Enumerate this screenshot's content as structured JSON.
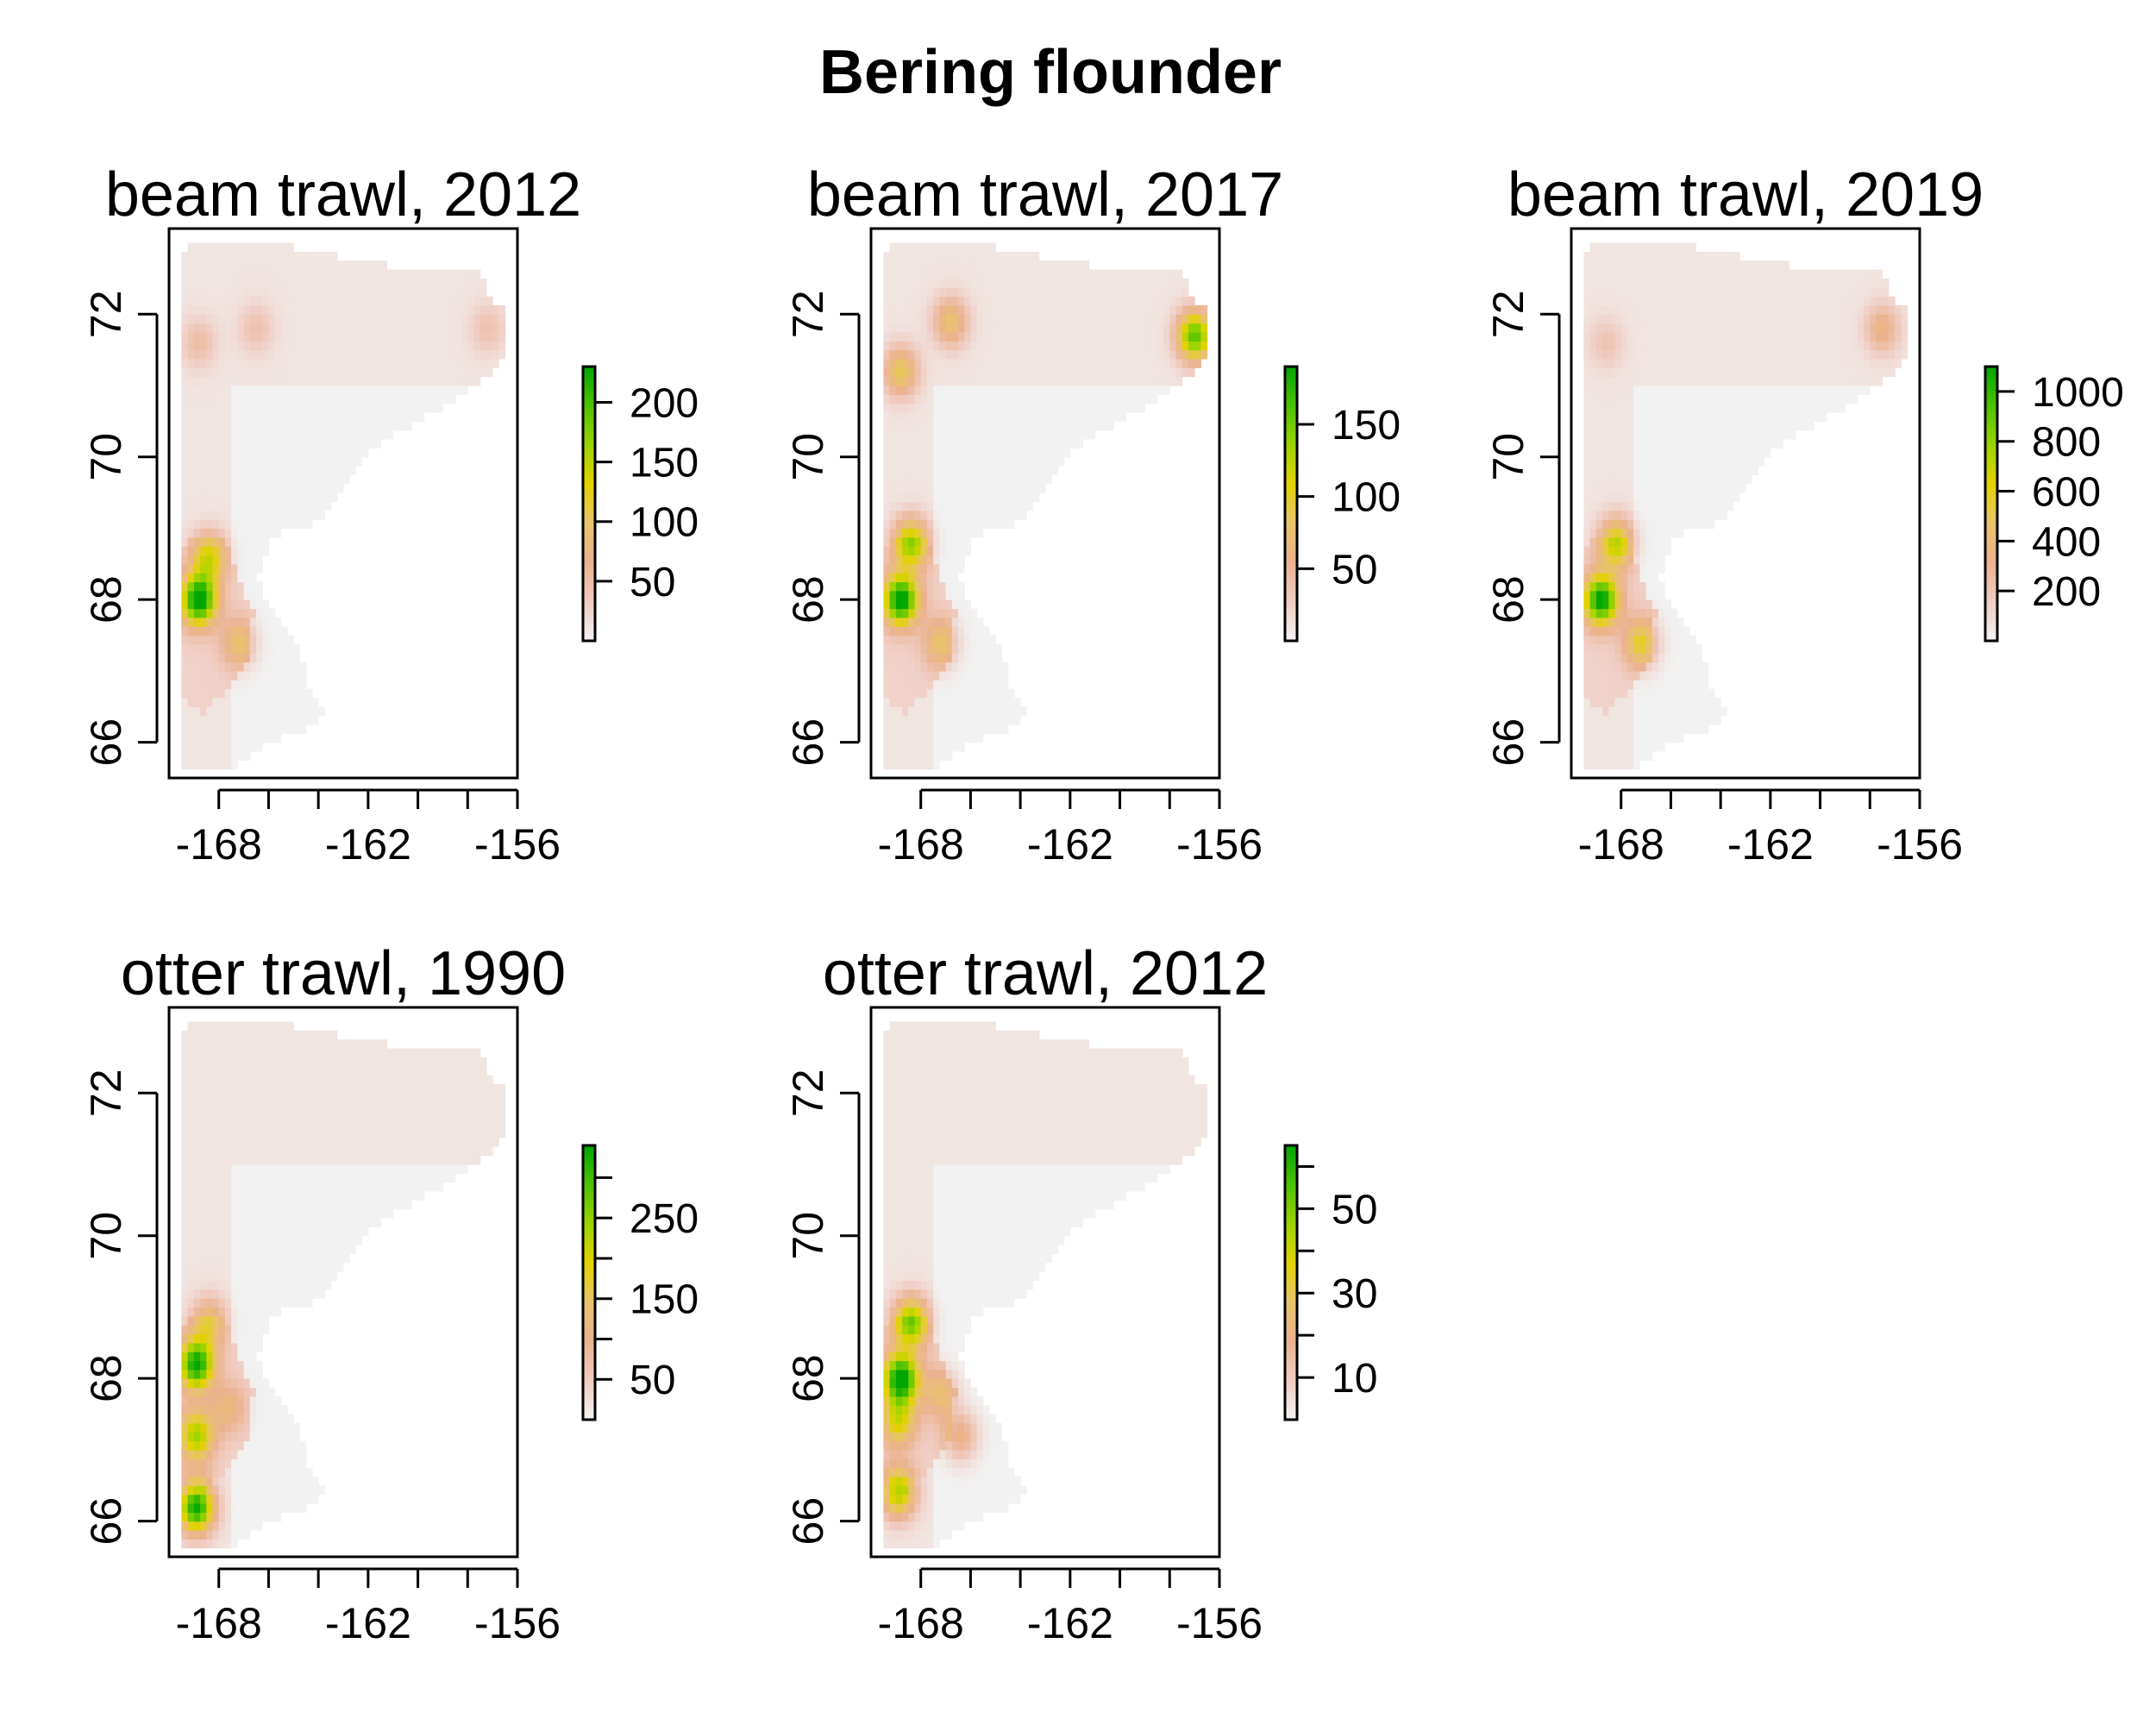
{
  "figure": {
    "title": "Bering flounder"
  },
  "palette": {
    "colorbar": [
      "#f2f2f2",
      "#f0ccc2",
      "#ebb28f",
      "#e9c36c",
      "#e3d300",
      "#9cd400",
      "#4dc200",
      "#00a600"
    ],
    "land_fill": "#ffffff",
    "frame": "#000000"
  },
  "chart_data": [
    {
      "type": "heatmap",
      "title": "beam trawl, 2012",
      "xlim": [
        -170,
        -156
      ],
      "ylim": [
        65.5,
        73.2
      ],
      "x_ticks": [
        -168,
        -166,
        -164,
        -162,
        -160,
        -158,
        -156
      ],
      "x_tick_labels": [
        "-168",
        "",
        "",
        "-162",
        "",
        "",
        "-156"
      ],
      "y_ticks": [
        66,
        68,
        70,
        72
      ],
      "y_tick_labels": [
        "66",
        "68",
        "70",
        "72"
      ],
      "colorbar_range": [
        0,
        230
      ],
      "colorbar_ticks": [
        50,
        100,
        150,
        200
      ],
      "colorbar_labels": [
        "50",
        "100",
        "150",
        "200"
      ],
      "hotspots": [
        {
          "lon": -168.8,
          "lat": 68.0,
          "value": 220
        },
        {
          "lon": -168.4,
          "lat": 68.6,
          "value": 110
        },
        {
          "lon": -167.2,
          "lat": 67.4,
          "value": 70
        },
        {
          "lon": -168.8,
          "lat": 71.6,
          "value": 40
        },
        {
          "lon": -166.5,
          "lat": 71.8,
          "value": 35
        },
        {
          "lon": -157.2,
          "lat": 71.8,
          "value": 35
        }
      ]
    },
    {
      "type": "heatmap",
      "title": "beam trawl, 2017",
      "xlim": [
        -170,
        -156
      ],
      "ylim": [
        65.5,
        73.2
      ],
      "x_ticks": [
        -168,
        -166,
        -164,
        -162,
        -160,
        -158,
        -156
      ],
      "x_tick_labels": [
        "-168",
        "",
        "",
        "-162",
        "",
        "",
        "-156"
      ],
      "y_ticks": [
        66,
        68,
        70,
        72
      ],
      "y_tick_labels": [
        "66",
        "68",
        "70",
        "72"
      ],
      "colorbar_range": [
        0,
        190
      ],
      "colorbar_ticks": [
        50,
        100,
        150
      ],
      "colorbar_labels": [
        "50",
        "100",
        "150"
      ],
      "hotspots": [
        {
          "lon": -168.8,
          "lat": 68.0,
          "value": 180
        },
        {
          "lon": -168.4,
          "lat": 68.8,
          "value": 120
        },
        {
          "lon": -168.8,
          "lat": 71.2,
          "value": 80
        },
        {
          "lon": -166.8,
          "lat": 71.9,
          "value": 70
        },
        {
          "lon": -157.0,
          "lat": 71.7,
          "value": 150
        },
        {
          "lon": -167.2,
          "lat": 67.4,
          "value": 60
        }
      ]
    },
    {
      "type": "heatmap",
      "title": "beam trawl, 2019",
      "xlim": [
        -170,
        -156
      ],
      "ylim": [
        65.5,
        73.2
      ],
      "x_ticks": [
        -168,
        -166,
        -164,
        -162,
        -160,
        -158,
        -156
      ],
      "x_tick_labels": [
        "-168",
        "",
        "",
        "-162",
        "",
        "",
        "-156"
      ],
      "y_ticks": [
        66,
        68,
        70,
        72
      ],
      "y_tick_labels": [
        "66",
        "68",
        "70",
        "72"
      ],
      "colorbar_range": [
        0,
        1100
      ],
      "colorbar_ticks": [
        200,
        400,
        600,
        800,
        1000
      ],
      "colorbar_labels": [
        "200",
        "400",
        "600",
        "800",
        "1000"
      ],
      "hotspots": [
        {
          "lon": -168.8,
          "lat": 68.0,
          "value": 1000
        },
        {
          "lon": -168.2,
          "lat": 68.8,
          "value": 600
        },
        {
          "lon": -167.2,
          "lat": 67.4,
          "value": 450
        },
        {
          "lon": -157.5,
          "lat": 71.8,
          "value": 300
        },
        {
          "lon": -168.6,
          "lat": 71.6,
          "value": 150
        }
      ]
    },
    {
      "type": "heatmap",
      "title": "otter trawl, 1990",
      "xlim": [
        -170,
        -156
      ],
      "ylim": [
        65.5,
        73.2
      ],
      "x_ticks": [
        -168,
        -166,
        -164,
        -162,
        -160,
        -158,
        -156
      ],
      "x_tick_labels": [
        "-168",
        "",
        "",
        "-162",
        "",
        "",
        "-156"
      ],
      "y_ticks": [
        66,
        68,
        70,
        72
      ],
      "y_tick_labels": [
        "66",
        "68",
        "70",
        "72"
      ],
      "colorbar_range": [
        0,
        340
      ],
      "colorbar_ticks": [
        50,
        100,
        150,
        200,
        250,
        300
      ],
      "colorbar_labels": [
        "50",
        "",
        "150",
        "",
        "250",
        ""
      ],
      "hotspots": [
        {
          "lon": -168.9,
          "lat": 68.2,
          "value": 300
        },
        {
          "lon": -168.9,
          "lat": 66.2,
          "value": 320
        },
        {
          "lon": -168.9,
          "lat": 67.2,
          "value": 200
        },
        {
          "lon": -168.4,
          "lat": 68.8,
          "value": 120
        },
        {
          "lon": -167.6,
          "lat": 67.6,
          "value": 80
        }
      ]
    },
    {
      "type": "heatmap",
      "title": "otter trawl, 2012",
      "xlim": [
        -170,
        -156
      ],
      "ylim": [
        65.5,
        73.2
      ],
      "x_ticks": [
        -168,
        -166,
        -164,
        -162,
        -160,
        -158,
        -156
      ],
      "x_tick_labels": [
        "-168",
        "",
        "",
        "-162",
        "",
        "",
        "-156"
      ],
      "y_ticks": [
        66,
        68,
        70,
        72
      ],
      "y_tick_labels": [
        "66",
        "68",
        "70",
        "72"
      ],
      "colorbar_range": [
        0,
        65
      ],
      "colorbar_ticks": [
        10,
        20,
        30,
        40,
        50,
        60
      ],
      "colorbar_labels": [
        "10",
        "",
        "30",
        "",
        "50",
        ""
      ],
      "hotspots": [
        {
          "lon": -168.8,
          "lat": 68.0,
          "value": 62
        },
        {
          "lon": -168.4,
          "lat": 68.8,
          "value": 45
        },
        {
          "lon": -168.9,
          "lat": 66.4,
          "value": 40
        },
        {
          "lon": -168.9,
          "lat": 67.4,
          "value": 30
        },
        {
          "lon": -166.4,
          "lat": 67.2,
          "value": 20
        },
        {
          "lon": -167.2,
          "lat": 67.8,
          "value": 18
        }
      ]
    }
  ]
}
